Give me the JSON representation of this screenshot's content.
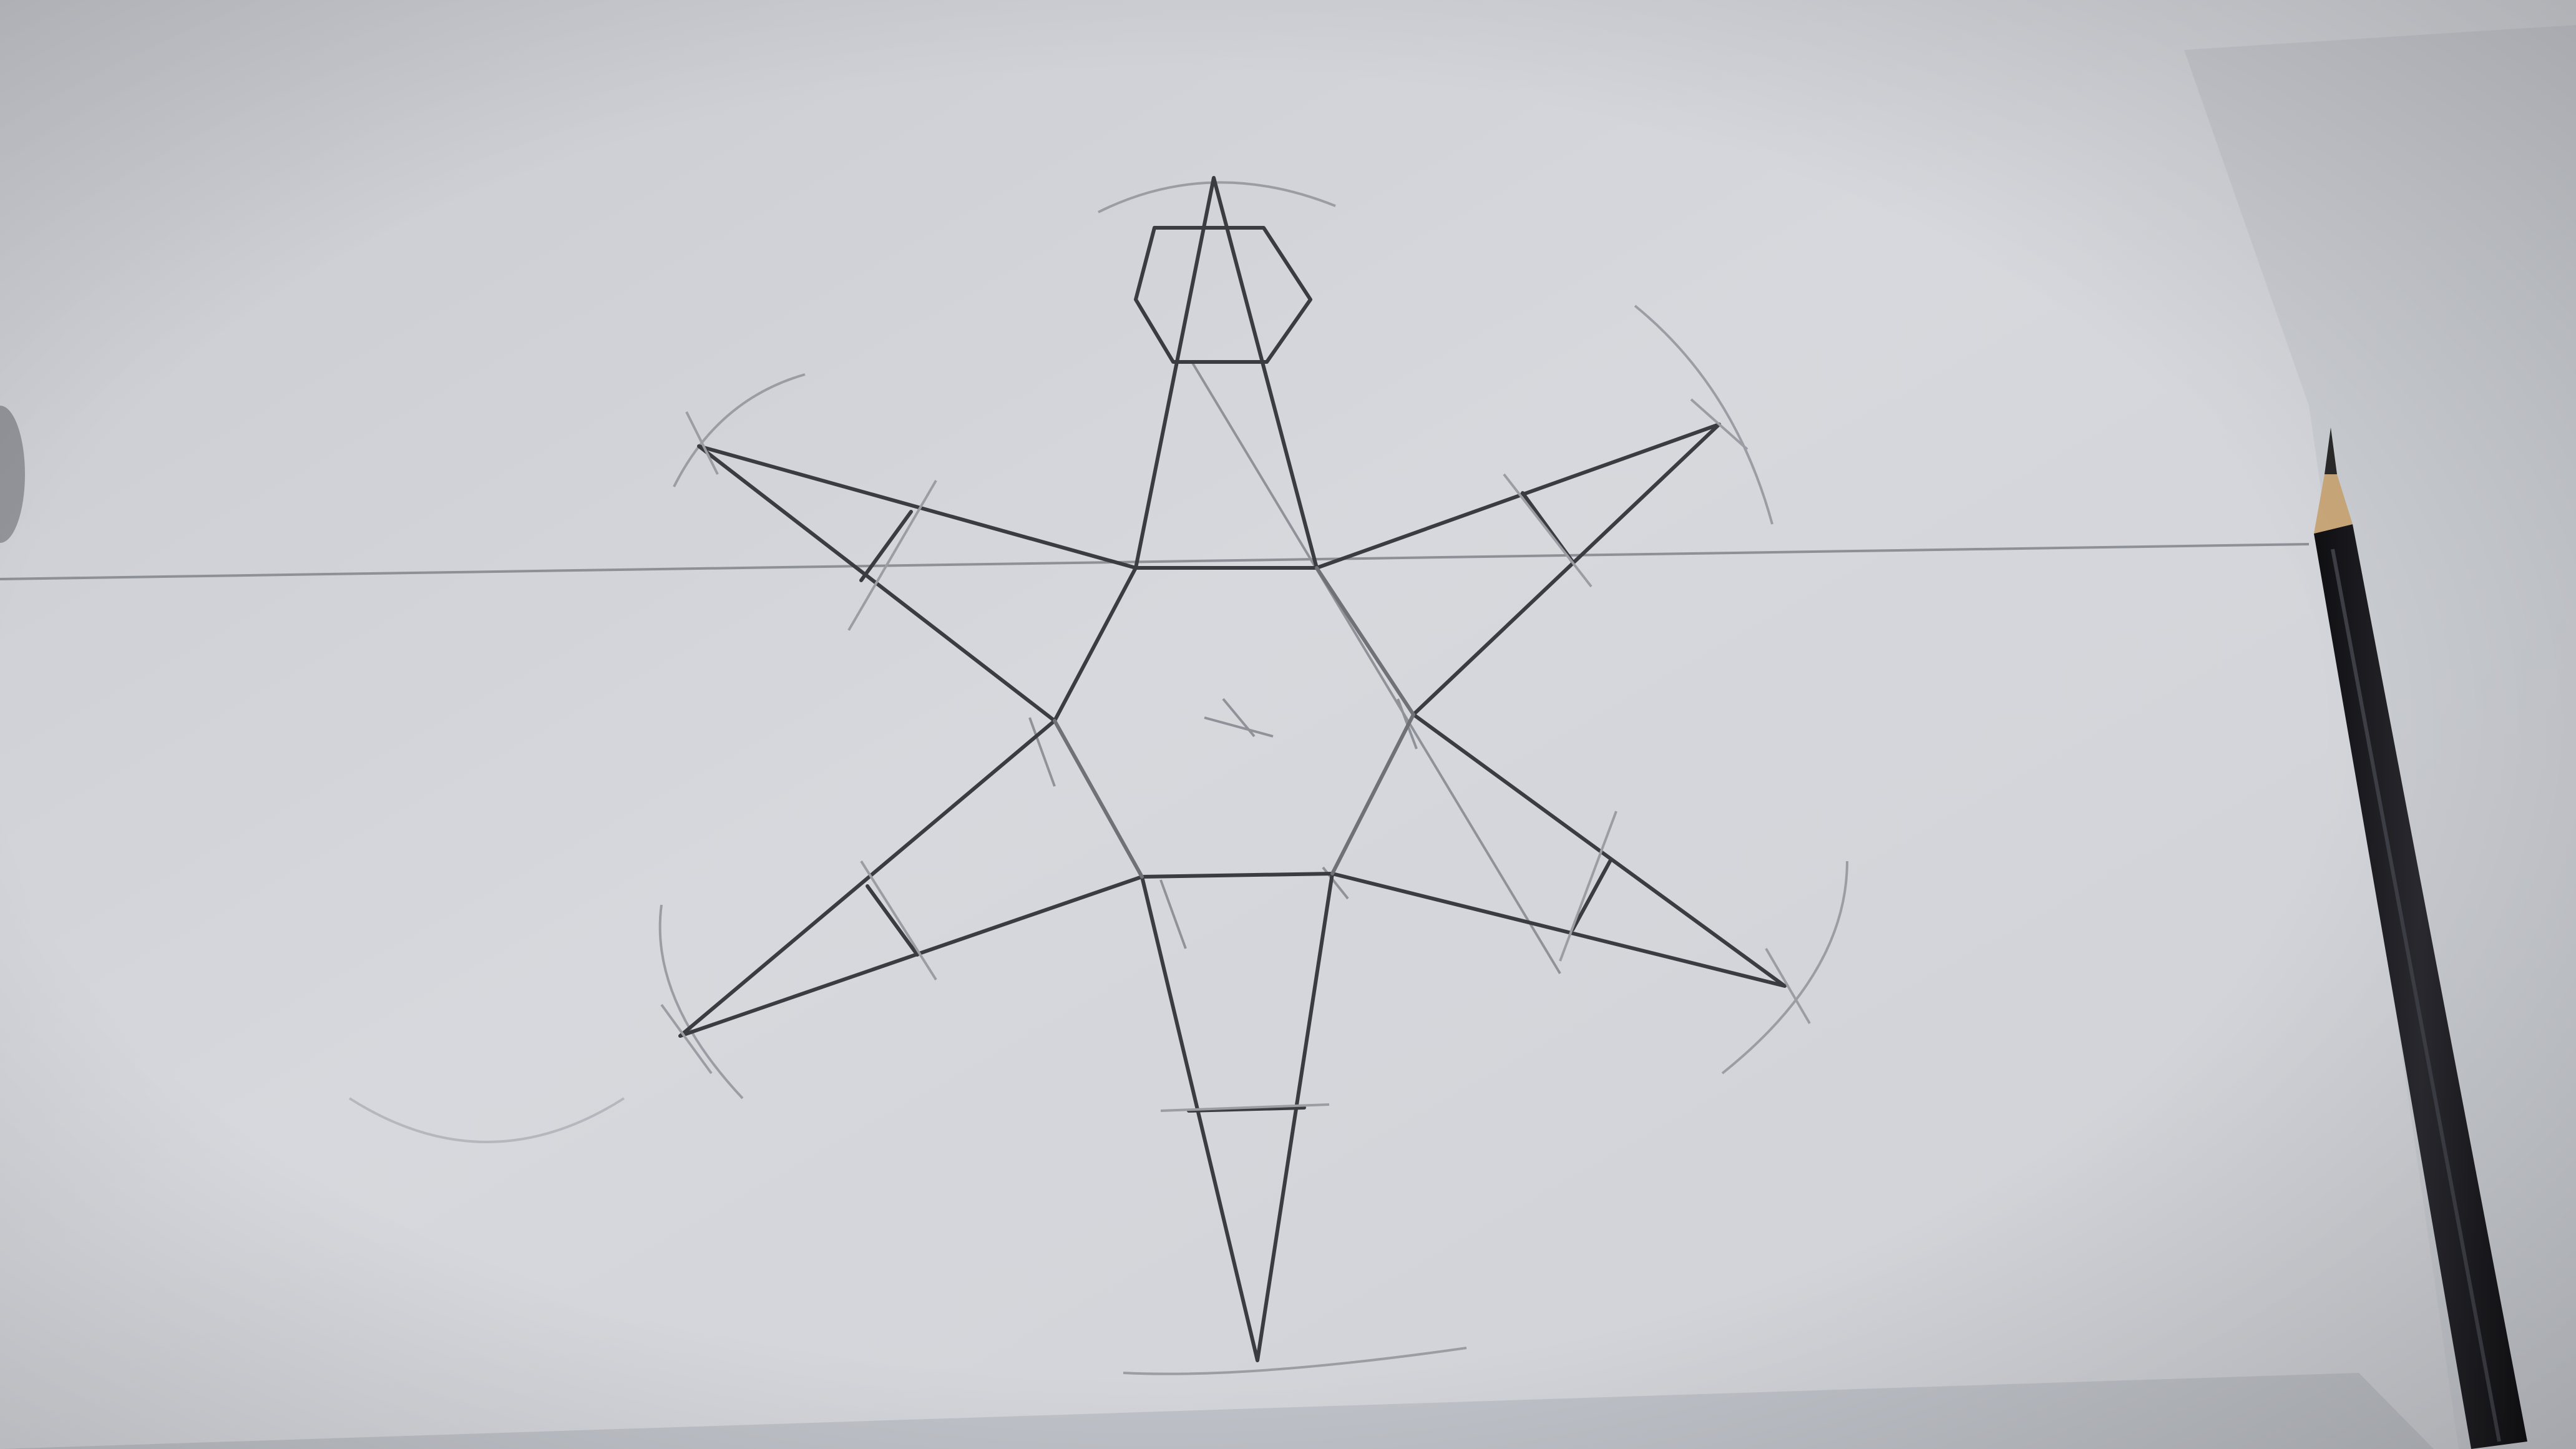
{
  "scene": {
    "description_name": "pencil-drawing-of-six-pointed-star",
    "colors": {
      "paper": "#d3d5da",
      "paper_shadow": "#c2c5cc",
      "background_left": "#b9bcc3",
      "pencil_line": "#3a3b40",
      "construction_line": "#8c8f96",
      "pencil_body": "#1b1b1f",
      "pencil_wood": "#c9a77a",
      "pencil_lead": "#2a2a2a"
    },
    "objects": [
      "paper-sheet",
      "star-drawing",
      "pencil-icon"
    ]
  }
}
